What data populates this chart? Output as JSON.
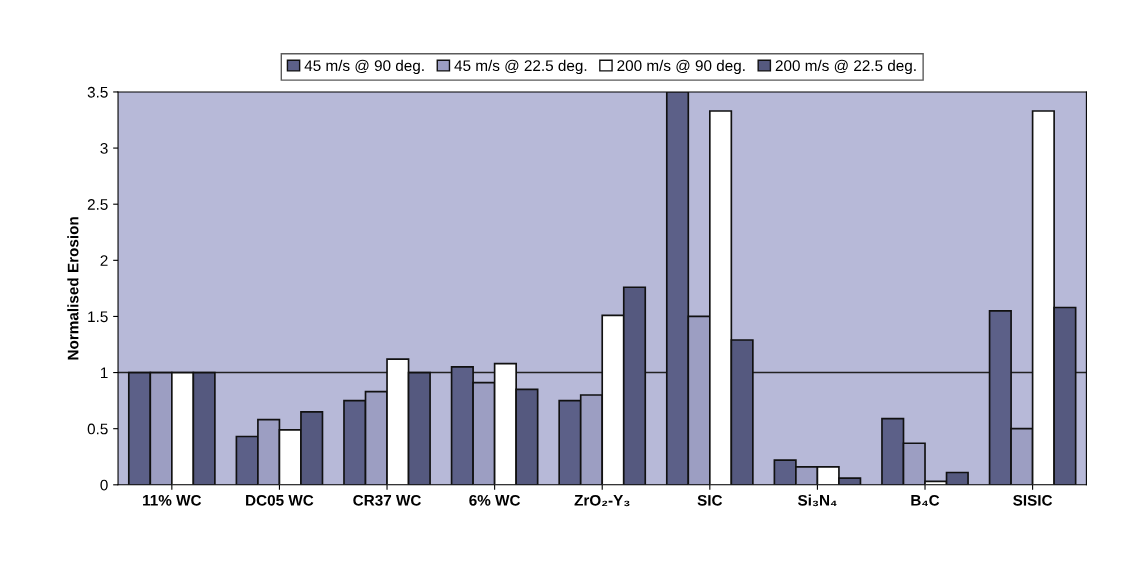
{
  "chart_data": {
    "type": "bar",
    "ylabel": "Normalised Erosion",
    "categories": [
      "11% WC",
      "DC05 WC",
      "CR37 WC",
      "6% WC",
      "ZrO₂-Y₃",
      "SIC",
      "Si₃N₄",
      "B₄C",
      "SISIC"
    ],
    "series": [
      {
        "name": "45 m/s @ 90 deg.",
        "color": "#5c6088",
        "values": [
          1.0,
          0.43,
          0.75,
          1.05,
          0.75,
          3.5,
          0.22,
          0.59,
          1.55
        ]
      },
      {
        "name": "45 m/s @ 22.5 deg.",
        "color": "#9c9ec2",
        "values": [
          1.0,
          0.58,
          0.83,
          0.91,
          0.8,
          1.5,
          0.16,
          0.37,
          0.5
        ]
      },
      {
        "name": "200 m/s @ 90 deg.",
        "color": "#ffffff",
        "values": [
          1.0,
          0.49,
          1.12,
          1.08,
          1.51,
          3.33,
          0.16,
          0.03,
          3.33
        ]
      },
      {
        "name": "200 m/s @ 22.5 deg.",
        "color": "#55597f",
        "values": [
          1.0,
          0.65,
          1.0,
          0.85,
          1.76,
          1.29,
          0.06,
          0.11,
          1.58
        ]
      }
    ],
    "ylim": [
      0,
      3.5
    ],
    "yticks": [
      0,
      0.5,
      1,
      1.5,
      2,
      2.5,
      3,
      3.5
    ],
    "ref_lines": [
      {
        "axis": "y",
        "value": 1,
        "color": "#222222"
      }
    ],
    "grid": false,
    "legend": "top"
  }
}
